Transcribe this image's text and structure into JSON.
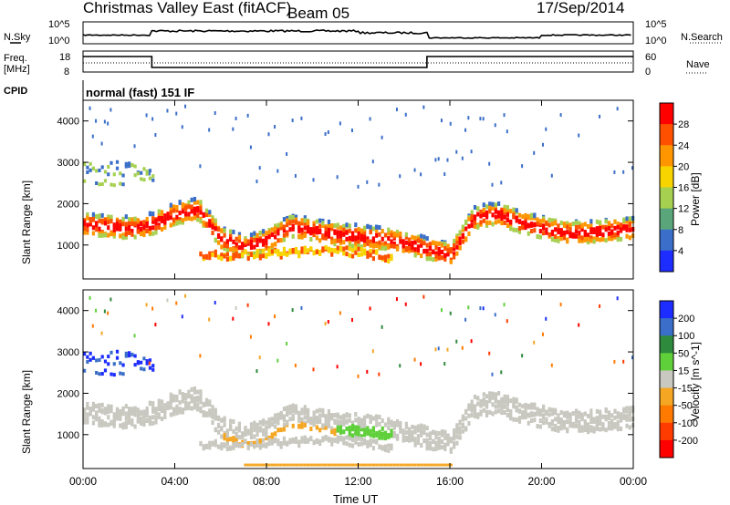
{
  "header": {
    "title": "Christmas Valley East (fitACF)",
    "beam": "Beam 05",
    "date": "17/Sep/2014"
  },
  "top_panels": {
    "nsky_label": "N.Sky",
    "nsearch_label": "N.Search",
    "nsky_ticks": [
      "10^5",
      "10^0"
    ],
    "nsearch_ticks": [
      "10^5",
      "10^0"
    ],
    "freq_label_1": "Freq.",
    "freq_label_2": "[MHz]",
    "freq_ticks": [
      "18",
      "8"
    ],
    "nave_label": "Nave",
    "nave_ticks": [
      "60",
      "0"
    ],
    "cpid_label": "CPID",
    "cpid_text": "normal (fast) 151 IF"
  },
  "chart_data": [
    {
      "type": "heatmap",
      "ylabel": "Slant Range [km]",
      "ylim": [
        180,
        4500
      ],
      "y_ticks": [
        "4000",
        "3000",
        "2000",
        "1000"
      ],
      "xlim": [
        "00:00",
        "24:00"
      ],
      "colorbar": {
        "label": "Power [dB]",
        "ticks": [
          "28",
          "24",
          "20",
          "16",
          "12",
          "8",
          "4"
        ],
        "colors": [
          "#ff0000",
          "#ff5000",
          "#ff9600",
          "#f7d400",
          "#a6d050",
          "#5aa67a",
          "#3a6ec8",
          "#1e2dff"
        ]
      },
      "bands": [
        {
          "name": "main",
          "start_hour": 0,
          "end_hour": 24,
          "center_km": [
            1550,
            1500,
            1450,
            1550,
            1800,
            1900,
            1200,
            1000,
            1150,
            1500,
            1400,
            1300,
            1250,
            1200,
            1100,
            950,
            800,
            1700,
            1800,
            1600,
            1450,
            1350,
            1350,
            1400,
            1450
          ]
        },
        {
          "name": "lower",
          "start_hour": 5,
          "end_hour": 13.5,
          "center_km": [
            800,
            800,
            820,
            850,
            880,
            900,
            900,
            850,
            700
          ]
        },
        {
          "name": "upper",
          "start_hour": 0,
          "end_hour": 3,
          "center_km": [
            2700,
            2750,
            2800,
            2600
          ]
        }
      ]
    },
    {
      "type": "heatmap",
      "ylabel": "Slant Range [km]",
      "ylim": [
        180,
        4500
      ],
      "y_ticks": [
        "4000",
        "3000",
        "2000",
        "1000"
      ],
      "x_ticks": [
        "00:00",
        "04:00",
        "08:00",
        "12:00",
        "16:00",
        "20:00",
        "00:00"
      ],
      "xlabel": "Time UT",
      "colorbar": {
        "label": "Velocity [m s^-1]",
        "ticks": [
          "200",
          "100",
          "50",
          "15",
          "-15",
          "-50",
          "-100",
          "-200"
        ],
        "colors": [
          "#1e2dff",
          "#3a6ec8",
          "#2e8a3c",
          "#5fcf3a",
          "#c8c8c0",
          "#f5a623",
          "#ff7a00",
          "#ff3c00",
          "#ff0000"
        ]
      }
    }
  ]
}
